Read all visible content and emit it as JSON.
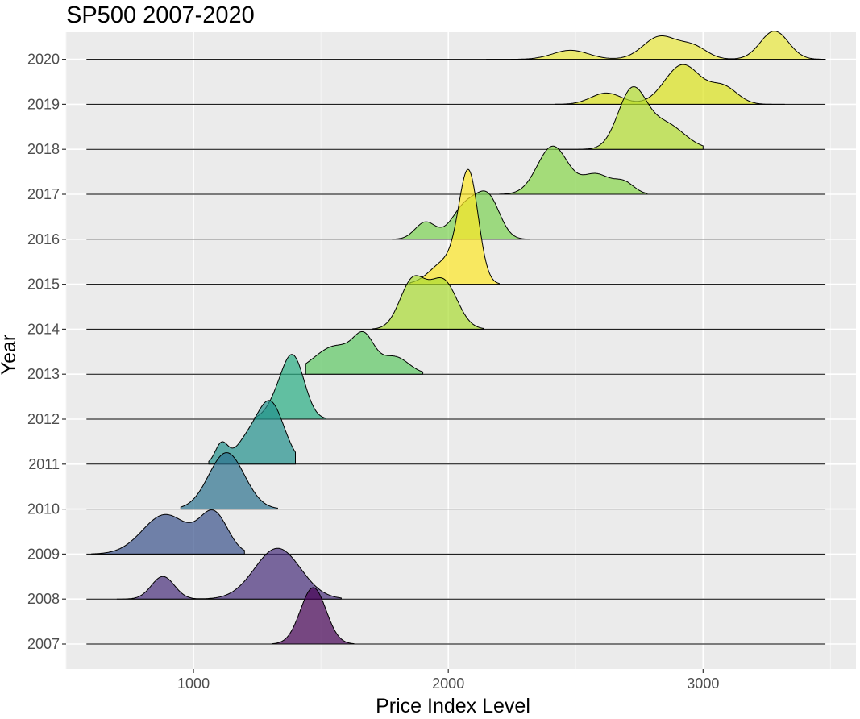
{
  "chart_data": {
    "type": "area",
    "subtype": "ridgeline",
    "title": "SP500 2007-2020",
    "xlabel": "Price Index Level",
    "ylabel": "Year",
    "xlim": [
      500,
      3600
    ],
    "xticks": [
      1000,
      2000,
      3000
    ],
    "xtick_labels": [
      "1000",
      "2000",
      "3000"
    ],
    "grid": true,
    "legend": "none",
    "fill_opacity": 0.7,
    "series": [
      {
        "name": "2007",
        "color": "#440154",
        "peaks": [
          [
            1470,
            1.0,
            50
          ]
        ],
        "range": [
          1310,
          1630
        ]
      },
      {
        "name": "2008",
        "color": "#472D7B",
        "peaks": [
          [
            880,
            0.4,
            45
          ],
          [
            1330,
            0.9,
            90
          ]
        ],
        "range": [
          700,
          1580
        ]
      },
      {
        "name": "2009",
        "color": "#3B528B",
        "peaks": [
          [
            890,
            0.7,
            90
          ],
          [
            1080,
            0.7,
            55
          ]
        ],
        "range": [
          600,
          1200
        ]
      },
      {
        "name": "2010",
        "color": "#2C728E",
        "peaks": [
          [
            1130,
            1.0,
            70
          ]
        ],
        "range": [
          950,
          1330
        ]
      },
      {
        "name": "2011",
        "color": "#21908C",
        "peaks": [
          [
            1110,
            0.35,
            25
          ],
          [
            1300,
            1.1,
            55
          ],
          [
            1200,
            0.3,
            45
          ]
        ],
        "range": [
          1060,
          1400
        ]
      },
      {
        "name": "2012",
        "color": "#27AD81",
        "peaks": [
          [
            1390,
            1.1,
            45
          ],
          [
            1320,
            0.2,
            40
          ]
        ],
        "range": [
          1240,
          1520
        ]
      },
      {
        "name": "2013",
        "color": "#5DC863",
        "peaks": [
          [
            1560,
            0.5,
            85
          ],
          [
            1670,
            0.5,
            40
          ],
          [
            1790,
            0.3,
            55
          ]
        ],
        "range": [
          1440,
          1900
        ]
      },
      {
        "name": "2014",
        "color": "#AADC32",
        "peaks": [
          [
            1860,
            0.85,
            50
          ],
          [
            1980,
            0.85,
            55
          ]
        ],
        "range": [
          1700,
          2140
        ]
      },
      {
        "name": "2015",
        "color": "#FDE725",
        "peaks": [
          [
            2080,
            1.9,
            38
          ],
          [
            1990,
            0.4,
            60
          ]
        ],
        "range": [
          1850,
          2200
        ]
      },
      {
        "name": "2016",
        "color": "#7AD151",
        "peaks": [
          [
            1910,
            0.3,
            40
          ],
          [
            2070,
            0.6,
            55
          ],
          [
            2160,
            0.65,
            45
          ]
        ],
        "range": [
          1780,
          2320
        ]
      },
      {
        "name": "2017",
        "color": "#86D549",
        "peaks": [
          [
            2410,
            0.85,
            60
          ],
          [
            2580,
            0.35,
            55
          ],
          [
            2690,
            0.2,
            40
          ]
        ],
        "range": [
          2200,
          2780
        ]
      },
      {
        "name": "2018",
        "color": "#B2DD2D",
        "peaks": [
          [
            2720,
            1.0,
            55
          ],
          [
            2850,
            0.45,
            75
          ]
        ],
        "range": [
          2420,
          3000
        ]
      },
      {
        "name": "2019",
        "color": "#DCE319",
        "peaks": [
          [
            2620,
            0.2,
            60
          ],
          [
            2920,
            0.7,
            70
          ],
          [
            3080,
            0.3,
            55
          ]
        ],
        "range": [
          2420,
          3320
        ]
      },
      {
        "name": "2020",
        "color": "#E9E83A",
        "peaks": [
          [
            2480,
            0.16,
            70
          ],
          [
            2830,
            0.4,
            65
          ],
          [
            2960,
            0.22,
            55
          ],
          [
            3280,
            0.5,
            55
          ]
        ],
        "range": [
          2150,
          3480
        ]
      }
    ]
  }
}
